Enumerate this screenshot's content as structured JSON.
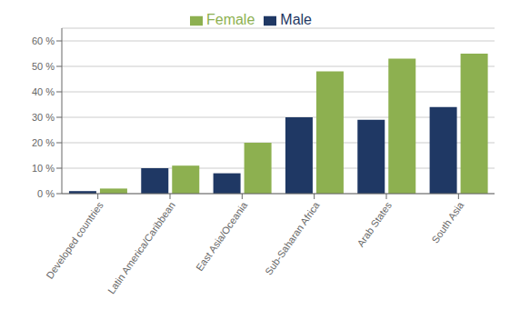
{
  "chart_data": {
    "type": "bar",
    "categories": [
      "Developed countries",
      "Latin America/Caribbean",
      "East Asia/Oceania",
      "Sub-Saharan Africa",
      "Arab States",
      "South Asia"
    ],
    "series": [
      {
        "name": "Male",
        "color": "#1F3864",
        "values": [
          1,
          10,
          8,
          30,
          29,
          34
        ]
      },
      {
        "name": "Female",
        "color": "#8DB050",
        "values": [
          2,
          11,
          20,
          48,
          53,
          55
        ]
      }
    ],
    "ylim": [
      0,
      65
    ],
    "yticks": [
      {
        "value": 0,
        "label": "0 %"
      },
      {
        "value": 10,
        "label": "10 %"
      },
      {
        "value": 20,
        "label": "20 %"
      },
      {
        "value": 30,
        "label": "30 %"
      },
      {
        "value": 40,
        "label": "40 %"
      },
      {
        "value": 50,
        "label": "50 %"
      },
      {
        "value": 60,
        "label": "60 %"
      }
    ],
    "grid": true,
    "legend": "top"
  }
}
